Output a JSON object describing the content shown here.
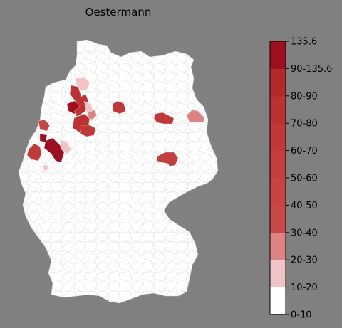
{
  "title": "Oestermann",
  "colors": {
    "background": "#808080",
    "land": "#ffffff",
    "border": "#cfcfcf"
  },
  "legend": {
    "bins": [
      {
        "label": "0-10",
        "color": "#ffffff"
      },
      {
        "label": "10-20",
        "color": "#f0c4c4"
      },
      {
        "label": "20-30",
        "color": "#dc8484"
      },
      {
        "label": "30-40",
        "color": "#c84848"
      },
      {
        "label": "40-50",
        "color": "#c64444"
      },
      {
        "label": "50-60",
        "color": "#c43e3e"
      },
      {
        "label": "60-70",
        "color": "#c03838"
      },
      {
        "label": "70-80",
        "color": "#bc3232"
      },
      {
        "label": "80-90",
        "color": "#b42a2a"
      },
      {
        "label": "90-135.6",
        "color": "#9e1020"
      }
    ],
    "max_label": "135.6"
  },
  "regions": [
    {
      "bin": 9
    },
    {
      "bin": 9
    },
    {
      "bin": 9
    },
    {
      "bin": 7
    },
    {
      "bin": 7
    },
    {
      "bin": 6
    },
    {
      "bin": 6
    },
    {
      "bin": 6
    },
    {
      "bin": 6
    },
    {
      "bin": 5
    },
    {
      "bin": 4
    },
    {
      "bin": 2
    },
    {
      "bin": 2
    },
    {
      "bin": 1
    },
    {
      "bin": 1
    },
    {
      "bin": 1
    },
    {
      "bin": 1
    }
  ]
}
